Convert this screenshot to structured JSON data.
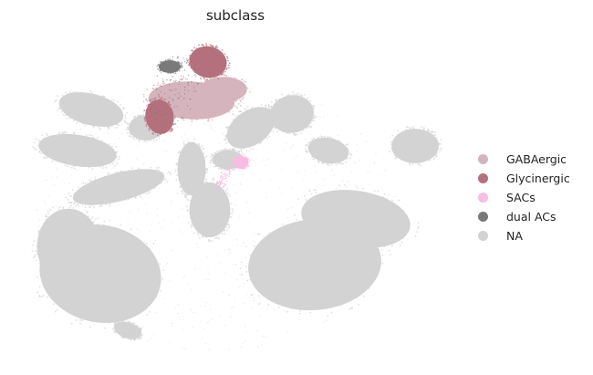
{
  "chart_data": {
    "type": "scatter",
    "title": "subclass",
    "xlabel": "",
    "ylabel": "",
    "axes_visible": false,
    "legend_position": "right",
    "series": [
      {
        "name": "GABAergic",
        "color": "#d5b4bd",
        "description_region": "upper-center cluster"
      },
      {
        "name": "Glycinergic",
        "color": "#b5707d",
        "description_region": "upper-right lobe and left-upper lobe"
      },
      {
        "name": "SACs",
        "color": "#f7bde3",
        "description_region": "small center-right cluster"
      },
      {
        "name": "dual ACs",
        "color": "#7a7a7a",
        "description_region": "small top cluster"
      },
      {
        "name": "NA",
        "color": "#d3d3d3",
        "description_region": "background of all other cells"
      }
    ]
  }
}
